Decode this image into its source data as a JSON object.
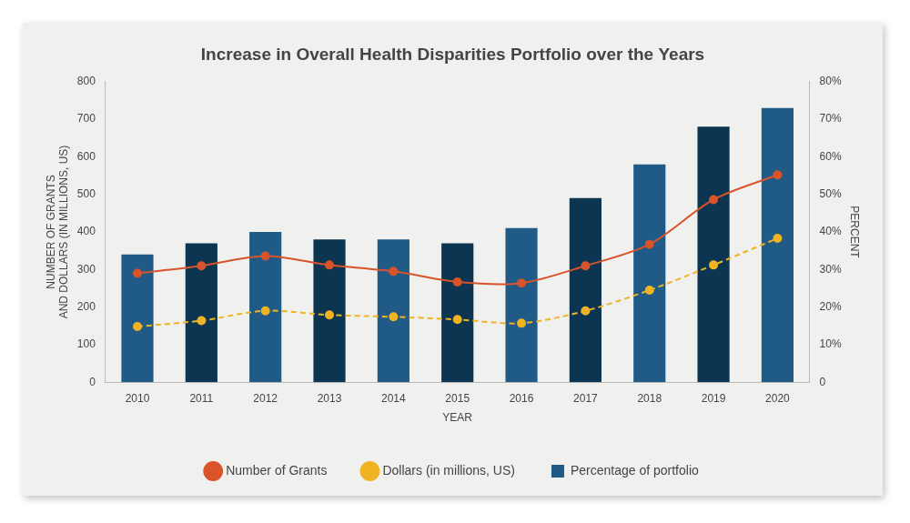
{
  "chart_data": {
    "type": "bar",
    "title": "Increase in Overall Health Disparities Portfolio over the Years",
    "x_label": "YEAR",
    "y_label": [
      "NUMBER OF GRANTS",
      "AND DOLLARS (IN MILLIONS, US)"
    ],
    "y2_label": "PERCENT",
    "categories": [
      "2010",
      "2011",
      "2012",
      "2013",
      "2014",
      "2015",
      "2016",
      "2017",
      "2018",
      "2019",
      "2020"
    ],
    "series": [
      {
        "name": "Percentage of portfolio",
        "type": "bar",
        "axis": "y2",
        "colors": [
          "#1f5b86",
          "#0c3552",
          "#1f5b86",
          "#0c3552",
          "#1f5b86",
          "#0c3552",
          "#1f5b86",
          "#0c3552",
          "#1f5b86",
          "#0c3552",
          "#1f5b86"
        ],
        "values": [
          34,
          37,
          40,
          38,
          38,
          37,
          41,
          49,
          58,
          68,
          73
        ]
      },
      {
        "name": "Number of Grants",
        "type": "line",
        "color": "#d9532b",
        "marker": "circle",
        "line_style": "solid",
        "values": [
          290,
          310,
          336,
          312,
          295,
          267,
          264,
          310,
          367,
          486,
          552
        ]
      },
      {
        "name": "Dollars (in millions, US)",
        "type": "line",
        "color": "#f0b323",
        "marker": "circle",
        "line_style": "dashed",
        "values": [
          148,
          164,
          190,
          179,
          174,
          167,
          157,
          190,
          245,
          312,
          383
        ]
      }
    ],
    "ylim": [
      0,
      800
    ],
    "yticks": [
      0,
      100,
      200,
      300,
      400,
      500,
      600,
      700,
      800
    ],
    "y2lim": [
      0,
      80
    ],
    "y2ticks": [
      0,
      {
        "value": 10,
        "label": "10%"
      },
      {
        "value": 20,
        "label": "20%"
      },
      {
        "value": 30,
        "label": "30%"
      },
      {
        "value": 40,
        "label": "40%"
      },
      {
        "value": 50,
        "label": "50%"
      },
      {
        "value": 60,
        "label": "60%"
      },
      {
        "value": 70,
        "label": "70%"
      },
      {
        "value": 80,
        "label": "80%"
      }
    ],
    "grid": false,
    "legend": "bottom"
  }
}
